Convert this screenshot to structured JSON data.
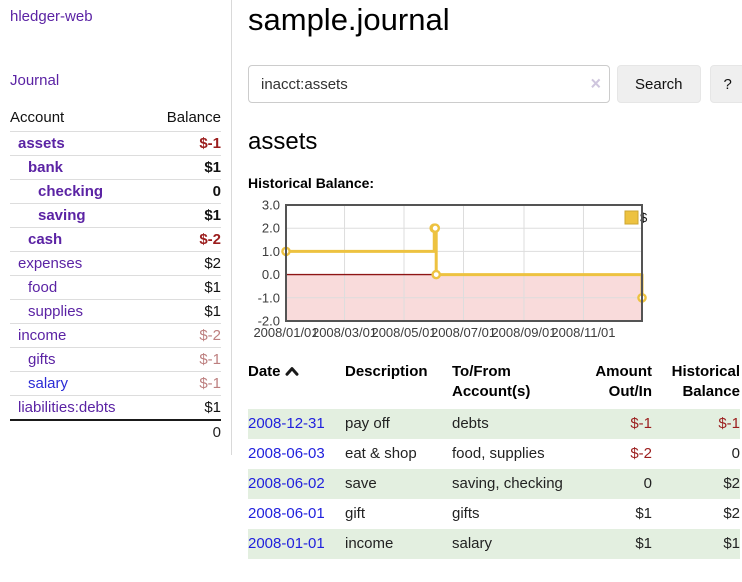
{
  "sidebar": {
    "brand": "hledger-web",
    "journal_link": "Journal",
    "accounts": {
      "header_account": "Account",
      "header_balance": "Balance",
      "rows": [
        {
          "name": "assets",
          "balance": "$-1",
          "indent": 0,
          "bold": true,
          "neg": "strong"
        },
        {
          "name": "bank",
          "balance": "$1",
          "indent": 1,
          "bold": true,
          "neg": null
        },
        {
          "name": "checking",
          "balance": "0",
          "indent": 2,
          "bold": true,
          "neg": null
        },
        {
          "name": "saving",
          "balance": "$1",
          "indent": 2,
          "bold": true,
          "neg": null
        },
        {
          "name": "cash",
          "balance": "$-2",
          "indent": 1,
          "bold": true,
          "neg": "strong"
        },
        {
          "name": "expenses",
          "balance": "$2",
          "indent": 0,
          "bold": false,
          "neg": null
        },
        {
          "name": "food",
          "balance": "$1",
          "indent": 1,
          "bold": false,
          "neg": null
        },
        {
          "name": "supplies",
          "balance": "$1",
          "indent": 1,
          "bold": false,
          "neg": null
        },
        {
          "name": "income",
          "balance": "$-2",
          "indent": 0,
          "bold": false,
          "neg": "muted"
        },
        {
          "name": "gifts",
          "balance": "$-1",
          "indent": 1,
          "bold": false,
          "neg": "muted"
        },
        {
          "name": "salary",
          "balance": "$-1",
          "indent": 1,
          "bold": false,
          "neg": "muted",
          "link_color": "blue"
        },
        {
          "name": "liabilities:debts",
          "balance": "$1",
          "indent": 0,
          "bold": false,
          "neg": null
        }
      ],
      "total": "0"
    }
  },
  "main": {
    "title": "sample.journal",
    "search": {
      "value": "inacct:assets",
      "clear_icon": "×",
      "button_label": "Search",
      "help_label": "?"
    },
    "section_title": "assets",
    "chart_label": "Historical Balance:"
  },
  "chart_data": {
    "type": "line",
    "title": "Historical Balance",
    "step": true,
    "ylim": [
      -2,
      3
    ],
    "xlim_days": [
      0,
      365
    ],
    "y_ticks": [
      "3.0",
      "2.0",
      "1.0",
      "0.0",
      "-1.0",
      "-2.0"
    ],
    "y_tick_values": [
      3,
      2,
      1,
      0,
      -1,
      -2
    ],
    "x_ticks": [
      {
        "label": "2008/01/01",
        "day": 0
      },
      {
        "label": "2008/03/01",
        "day": 60
      },
      {
        "label": "2008/05/01",
        "day": 121
      },
      {
        "label": "2008/07/01",
        "day": 182
      },
      {
        "label": "2008/09/01",
        "day": 244
      },
      {
        "label": "2008/11/01",
        "day": 305
      }
    ],
    "series": [
      {
        "name": "$",
        "color": "#EDC240",
        "points": [
          {
            "date": "2008-01-01",
            "day": 0,
            "y": 1
          },
          {
            "date": "2008-06-01",
            "day": 152,
            "y": 2
          },
          {
            "date": "2008-06-02",
            "day": 153,
            "y": 2
          },
          {
            "date": "2008-06-03",
            "day": 154,
            "y": 0
          },
          {
            "date": "2008-12-31",
            "day": 365,
            "y": -1
          }
        ]
      }
    ],
    "legend": {
      "label": "$",
      "position": "top-right"
    },
    "grid": true,
    "negative_region_color": "#f9dbdb",
    "zero_line_color": "#8e1515",
    "border_color": "#545454",
    "grid_color": "#dddddd"
  },
  "table": {
    "headers": [
      {
        "lines": [
          "Date"
        ],
        "align": "left",
        "sort": "asc"
      },
      {
        "lines": [
          "Description"
        ],
        "align": "left"
      },
      {
        "lines": [
          "To/From",
          "Account(s)"
        ],
        "align": "left"
      },
      {
        "lines": [
          "Amount",
          "Out/In"
        ],
        "align": "right"
      },
      {
        "lines": [
          "Historical",
          "Balance"
        ],
        "align": "right"
      }
    ],
    "rows": [
      {
        "date": "2008-12-31",
        "description": "pay off",
        "accounts": "debts",
        "amount": "$-1",
        "amount_neg": true,
        "balance": "$-1",
        "balance_neg": true,
        "striped": true
      },
      {
        "date": "2008-06-03",
        "description": "eat & shop",
        "accounts": "food, supplies",
        "amount": "$-2",
        "amount_neg": true,
        "balance": "0",
        "balance_neg": false,
        "striped": false
      },
      {
        "date": "2008-06-02",
        "description": "save",
        "accounts": "saving, checking",
        "amount": "0",
        "amount_neg": false,
        "balance": "$2",
        "balance_neg": false,
        "striped": true
      },
      {
        "date": "2008-06-01",
        "description": "gift",
        "accounts": "gifts",
        "amount": "$1",
        "amount_neg": false,
        "balance": "$2",
        "balance_neg": false,
        "striped": false
      },
      {
        "date": "2008-01-01",
        "description": "income",
        "accounts": "salary",
        "amount": "$1",
        "amount_neg": false,
        "balance": "$1",
        "balance_neg": false,
        "striped": true
      }
    ]
  },
  "colors": {
    "link_purple": "#5b23a4",
    "link_blue": "#2121dd",
    "negative_strong": "#9b1d1d",
    "negative_muted": "#bd7f7f",
    "row_stripe_green": "#e3efe0",
    "series_yellow": "#EDC240"
  }
}
